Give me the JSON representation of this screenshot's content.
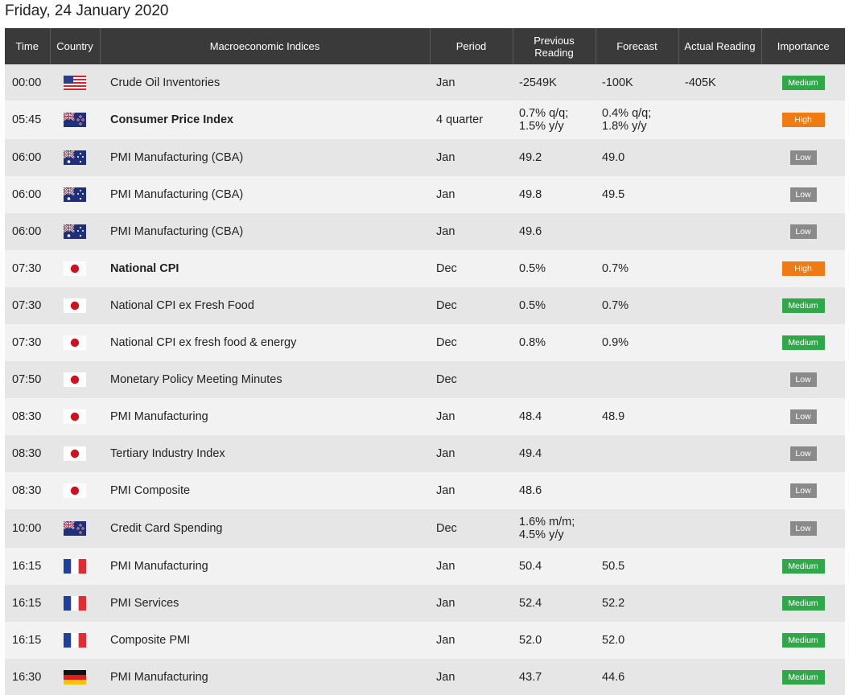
{
  "page": {
    "date_title": "Friday, 24 January 2020"
  },
  "columns": {
    "time": "Time",
    "country": "Country",
    "index": "Macroeconomic Indices",
    "period": "Period",
    "previous": "Previous Reading",
    "forecast": "Forecast",
    "actual": "Actual Reading",
    "importance": "Importance"
  },
  "colors": {
    "header_bg": "#3a3a3a",
    "row_alt_a": "#e6e6e6",
    "row_alt_b": "#f2f2f2",
    "medium": "#2fa84a",
    "high": "#f07a13",
    "low": "#8a8a8a",
    "negative_actual": "#e82a2a"
  },
  "rows": [
    {
      "time": "00:00",
      "country": "us-flag-icon",
      "index": "Crude Oil Inventories",
      "bold": false,
      "period": "Jan",
      "previous": "-2549K",
      "forecast": "-100K",
      "actual": "-405K",
      "actual_red": true,
      "importance": "Medium"
    },
    {
      "time": "05:45",
      "country": "nz-flag-icon",
      "index": "Consumer Price Index",
      "bold": true,
      "period": "4 quarter",
      "previous": "0.7% q/q;\n1.5% y/y",
      "forecast": "0.4% q/q;\n1.8% y/y",
      "actual": "",
      "actual_red": false,
      "importance": "High"
    },
    {
      "time": "06:00",
      "country": "au-flag-icon",
      "index": "PMI Manufacturing (CBA)",
      "bold": false,
      "period": "Jan",
      "previous": "49.2",
      "forecast": "49.0",
      "actual": "",
      "actual_red": false,
      "importance": "Low"
    },
    {
      "time": "06:00",
      "country": "au-flag-icon",
      "index": "PMI Manufacturing (CBA)",
      "bold": false,
      "period": "Jan",
      "previous": "49.8",
      "forecast": "49.5",
      "actual": "",
      "actual_red": false,
      "importance": "Low"
    },
    {
      "time": "06:00",
      "country": "au-flag-icon",
      "index": "PMI Manufacturing (CBA)",
      "bold": false,
      "period": "Jan",
      "previous": "49.6",
      "forecast": "",
      "actual": "",
      "actual_red": false,
      "importance": "Low"
    },
    {
      "time": "07:30",
      "country": "jp-flag-icon",
      "index": "National CPI",
      "bold": true,
      "period": "Dec",
      "previous": "0.5%",
      "forecast": "0.7%",
      "actual": "",
      "actual_red": false,
      "importance": "High"
    },
    {
      "time": "07:30",
      "country": "jp-flag-icon",
      "index": "National CPI ex Fresh Food",
      "bold": false,
      "period": "Dec",
      "previous": "0.5%",
      "forecast": "0.7%",
      "actual": "",
      "actual_red": false,
      "importance": "Medium"
    },
    {
      "time": "07:30",
      "country": "jp-flag-icon",
      "index": "National CPI ex fresh food & energy",
      "bold": false,
      "period": "Dec",
      "previous": "0.8%",
      "forecast": "0.9%",
      "actual": "",
      "actual_red": false,
      "importance": "Medium"
    },
    {
      "time": "07:50",
      "country": "jp-flag-icon",
      "index": "Monetary Policy Meeting Minutes",
      "bold": false,
      "period": "Dec",
      "previous": "",
      "forecast": "",
      "actual": "",
      "actual_red": false,
      "importance": "Low"
    },
    {
      "time": "08:30",
      "country": "jp-flag-icon",
      "index": "PMI Manufacturing",
      "bold": false,
      "period": "Jan",
      "previous": "48.4",
      "forecast": "48.9",
      "actual": "",
      "actual_red": false,
      "importance": "Low"
    },
    {
      "time": "08:30",
      "country": "jp-flag-icon",
      "index": "Tertiary Industry Index",
      "bold": false,
      "period": "Jan",
      "previous": "49.4",
      "forecast": "",
      "actual": "",
      "actual_red": false,
      "importance": "Low"
    },
    {
      "time": "08:30",
      "country": "jp-flag-icon",
      "index": "PMI Composite",
      "bold": false,
      "period": "Jan",
      "previous": "48.6",
      "forecast": "",
      "actual": "",
      "actual_red": false,
      "importance": "Low"
    },
    {
      "time": "10:00",
      "country": "nz-flag-icon",
      "index": "Credit Card Spending",
      "bold": false,
      "period": "Dec",
      "previous": "1.6% m/m;\n4.5% y/y",
      "forecast": "",
      "actual": "",
      "actual_red": false,
      "importance": "Low"
    },
    {
      "time": "16:15",
      "country": "fr-flag-icon",
      "index": "PMI Manufacturing",
      "bold": false,
      "period": "Jan",
      "previous": "50.4",
      "forecast": "50.5",
      "actual": "",
      "actual_red": false,
      "importance": "Medium"
    },
    {
      "time": "16:15",
      "country": "fr-flag-icon",
      "index": "PMI Services",
      "bold": false,
      "period": "Jan",
      "previous": "52.4",
      "forecast": "52.2",
      "actual": "",
      "actual_red": false,
      "importance": "Medium"
    },
    {
      "time": "16:15",
      "country": "fr-flag-icon",
      "index": "Composite PMI",
      "bold": false,
      "period": "Jan",
      "previous": "52.0",
      "forecast": "52.0",
      "actual": "",
      "actual_red": false,
      "importance": "Medium"
    },
    {
      "time": "16:30",
      "country": "de-flag-icon",
      "index": "PMI Manufacturing",
      "bold": false,
      "period": "Jan",
      "previous": "43.7",
      "forecast": "44.6",
      "actual": "",
      "actual_red": false,
      "importance": "Medium"
    }
  ]
}
